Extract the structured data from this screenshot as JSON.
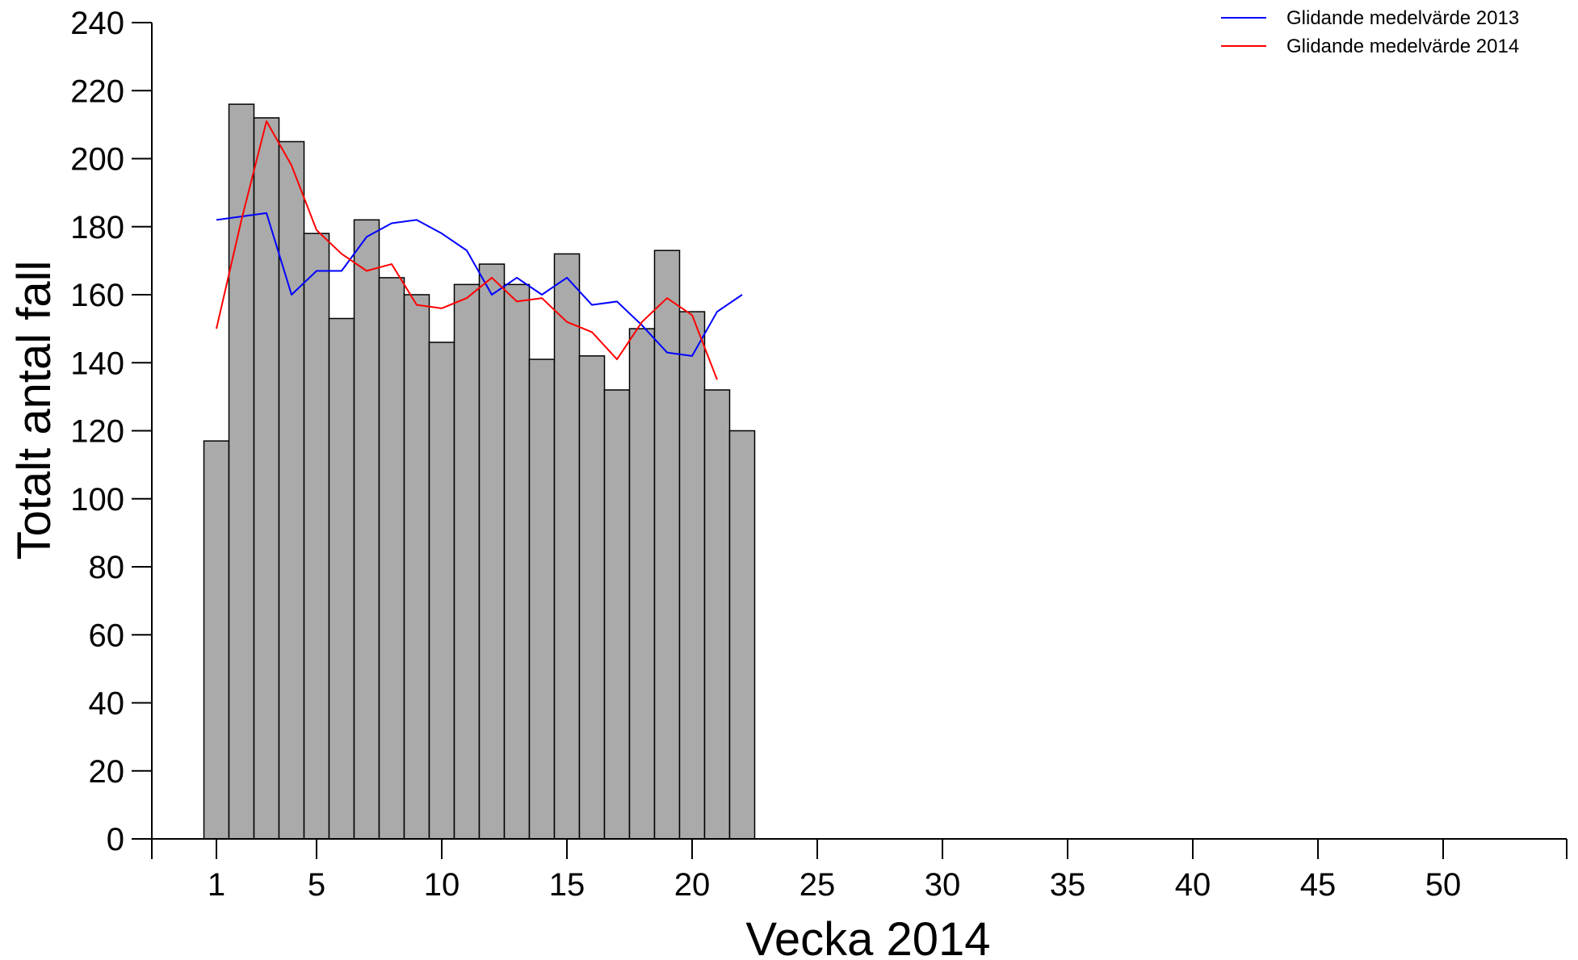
{
  "chart_data": {
    "type": "bar",
    "xlabel": "Vecka 2014",
    "ylabel": "Totalt antal fall",
    "xlim": [
      -1.5,
      54
    ],
    "ylim": [
      0,
      240
    ],
    "x_ticks": [
      1,
      5,
      10,
      15,
      20,
      25,
      30,
      35,
      40,
      45,
      50
    ],
    "y_ticks": [
      0,
      20,
      40,
      60,
      80,
      100,
      120,
      140,
      160,
      180,
      200,
      220,
      240
    ],
    "grid": false,
    "legend_position": "top-right",
    "bar_color": "#aaaaaa",
    "bar_edge_color": "#000000",
    "categories": [
      1,
      2,
      3,
      4,
      5,
      6,
      7,
      8,
      9,
      10,
      11,
      12,
      13,
      14,
      15,
      16,
      17,
      18,
      19,
      20,
      21,
      22
    ],
    "values": [
      117,
      216,
      212,
      205,
      178,
      153,
      182,
      165,
      160,
      146,
      163,
      169,
      163,
      141,
      172,
      142,
      132,
      150,
      173,
      155,
      132,
      120
    ],
    "series": [
      {
        "name": "Glidande medelvärde 2013",
        "type": "line",
        "color": "#0000ff",
        "x": [
          1,
          2,
          3,
          4,
          5,
          6,
          7,
          8,
          9,
          10,
          11,
          12,
          13,
          14,
          15,
          16,
          17,
          18,
          19,
          20,
          21,
          22
        ],
        "values": [
          182,
          183,
          184,
          160,
          167,
          167,
          177,
          181,
          182,
          178,
          173,
          160,
          165,
          160,
          165,
          157,
          158,
          151,
          143,
          142,
          155,
          160
        ]
      },
      {
        "name": "Glidande medelvärde 2014",
        "type": "line",
        "color": "#ff0000",
        "x": [
          1,
          2,
          3,
          4,
          5,
          6,
          7,
          8,
          9,
          10,
          11,
          12,
          13,
          14,
          15,
          16,
          17,
          18,
          19,
          20,
          21
        ],
        "values": [
          150,
          182,
          211,
          198,
          179,
          172,
          167,
          169,
          157,
          156,
          159,
          165,
          158,
          159,
          152,
          149,
          141,
          152,
          159,
          154,
          135
        ]
      }
    ]
  }
}
